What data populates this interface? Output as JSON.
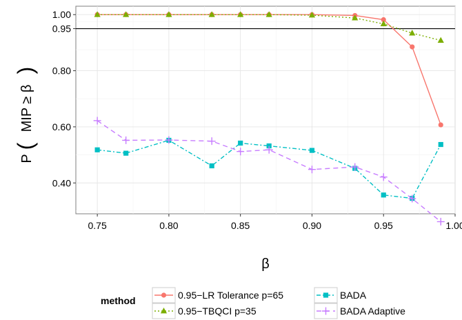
{
  "chart_data": {
    "type": "line",
    "title": "",
    "xlabel": "β",
    "ylabel": "P(MIP ≥ β)",
    "ylabel_parts": {
      "prefix": "P",
      "inner": "MIP ≥ β"
    },
    "xlim": [
      0.735,
      1.0
    ],
    "ylim": [
      0.29,
      1.03
    ],
    "x_ticks": [
      {
        "value": 0.75,
        "label": "0.75"
      },
      {
        "value": 0.8,
        "label": "0.80"
      },
      {
        "value": 0.85,
        "label": "0.85"
      },
      {
        "value": 0.9,
        "label": "0.90"
      },
      {
        "value": 0.95,
        "label": "0.95"
      },
      {
        "value": 1.0,
        "label": "1.00"
      }
    ],
    "y_ticks": [
      {
        "value": 0.4,
        "label": "0.40"
      },
      {
        "value": 0.6,
        "label": "0.60"
      },
      {
        "value": 0.8,
        "label": "0.80"
      },
      {
        "value": 0.95,
        "label": "0.95"
      },
      {
        "value": 1.0,
        "label": "1.00"
      }
    ],
    "hline": 0.95,
    "grid": true,
    "legend": {
      "title": "method",
      "position": "bottom"
    },
    "series": [
      {
        "name": "0.95−LR Tolerance p=65",
        "color": "#F8766D",
        "marker": "circle",
        "dash": "solid",
        "x": [
          0.75,
          0.77,
          0.8,
          0.83,
          0.85,
          0.87,
          0.9,
          0.93,
          0.95,
          0.97,
          0.99
        ],
        "y": [
          1.0,
          1.0,
          1.0,
          1.0,
          1.0,
          1.0,
          1.0,
          0.997,
          0.982,
          0.885,
          0.607
        ]
      },
      {
        "name": "0.95−TBQCI p=35",
        "color": "#7CAE00",
        "marker": "triangle",
        "dash": "dotted",
        "x": [
          0.75,
          0.77,
          0.8,
          0.83,
          0.85,
          0.87,
          0.9,
          0.93,
          0.95,
          0.97,
          0.99
        ],
        "y": [
          1.0,
          1.0,
          1.0,
          1.0,
          1.0,
          1.0,
          0.998,
          0.988,
          0.967,
          0.934,
          0.908
        ]
      },
      {
        "name": "BADA",
        "color": "#00BFC4",
        "marker": "square",
        "dash": "dashdot",
        "x": [
          0.75,
          0.77,
          0.8,
          0.83,
          0.85,
          0.87,
          0.9,
          0.93,
          0.95,
          0.97,
          0.99
        ],
        "y": [
          0.518,
          0.506,
          0.552,
          0.461,
          0.542,
          0.532,
          0.516,
          0.452,
          0.357,
          0.345,
          0.537
        ]
      },
      {
        "name": "BADA Adaptive",
        "color": "#C77CFF",
        "marker": "plus",
        "dash": "dashed",
        "x": [
          0.75,
          0.77,
          0.8,
          0.83,
          0.85,
          0.87,
          0.9,
          0.93,
          0.95,
          0.97,
          0.99
        ],
        "y": [
          0.622,
          0.552,
          0.553,
          0.549,
          0.512,
          0.518,
          0.448,
          0.457,
          0.421,
          0.344,
          0.262
        ]
      }
    ]
  }
}
